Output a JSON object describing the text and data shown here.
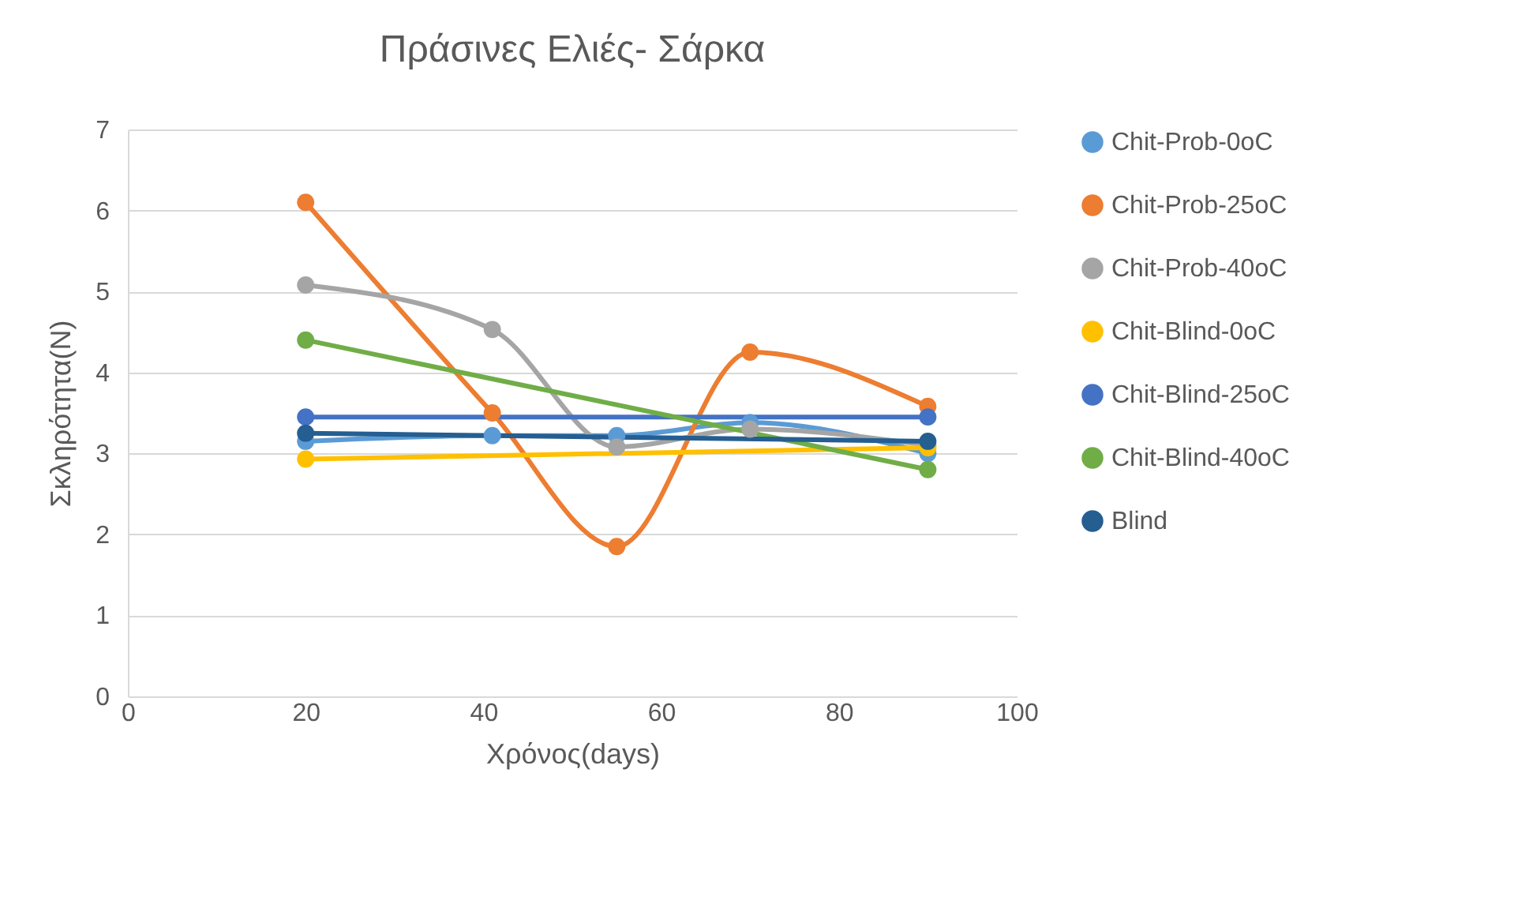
{
  "chart_data": {
    "type": "line",
    "title": "Πράσινες Ελιές- Σάρκα",
    "xlabel": "Χρόνος(days)",
    "ylabel": "Σκληρότητα(N)",
    "xlim": [
      0,
      100
    ],
    "xticks": [
      0,
      20,
      40,
      60,
      80,
      100
    ],
    "ylim": [
      0,
      7
    ],
    "yticks": [
      0,
      1,
      2,
      3,
      4,
      5,
      6,
      7
    ],
    "grid": "y",
    "legend": "right",
    "marker": "circle",
    "line_style": "solid",
    "series": [
      {
        "name": "Chit-Prob-0oC",
        "color": "#5b9bd5",
        "x": [
          20,
          41,
          55,
          70,
          90
        ],
        "values": [
          3.15,
          3.22,
          3.22,
          3.38,
          3.0
        ]
      },
      {
        "name": "Chit-Prob-25oC",
        "color": "#ed7d31",
        "x": [
          20,
          41,
          55,
          70,
          90
        ],
        "values": [
          6.1,
          3.5,
          1.85,
          4.25,
          3.58
        ]
      },
      {
        "name": "Chit-Prob-40oC",
        "color": "#a5a5a5",
        "x": [
          20,
          41,
          55,
          70,
          90
        ],
        "values": [
          5.08,
          4.53,
          3.08,
          3.3,
          3.1
        ]
      },
      {
        "name": "Chit-Blind-0oC",
        "color": "#ffc000",
        "x": [
          20,
          90
        ],
        "values": [
          2.93,
          3.07
        ]
      },
      {
        "name": "Chit-Blind-25oC",
        "color": "#4472c4",
        "x": [
          20,
          90
        ],
        "values": [
          3.45,
          3.45
        ]
      },
      {
        "name": "Chit-Blind-40oC",
        "color": "#70ad47",
        "x": [
          20,
          90
        ],
        "values": [
          4.4,
          2.8
        ]
      },
      {
        "name": "Blind",
        "color": "#255e91",
        "x": [
          20,
          90
        ],
        "values": [
          3.25,
          3.15
        ]
      }
    ]
  }
}
